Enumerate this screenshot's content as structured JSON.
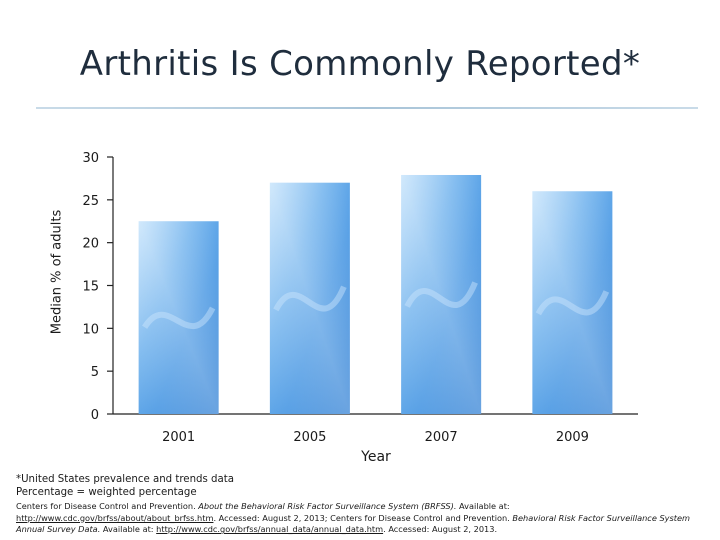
{
  "slide": {
    "title": "Arthritis Is Commonly Reported*"
  },
  "chart_data": {
    "type": "bar",
    "title": "Arthritis Is Commonly Reported*",
    "xlabel": "Year",
    "ylabel": "Median % of adults",
    "categories": [
      "2001",
      "2005",
      "2007",
      "2009"
    ],
    "values": [
      22.5,
      27,
      27.9,
      26
    ],
    "ylim": [
      0,
      30
    ],
    "yticks": [
      "0",
      "5",
      "10",
      "15",
      "20",
      "25",
      "30"
    ],
    "grid": false,
    "bar_color": "#3f8fdc",
    "bar_light_color": "#bfe0fb"
  },
  "footnote": {
    "line1": "*United States prevalence and trends data",
    "line2": "Percentage = weighted percentage"
  },
  "references": {
    "r1_prefix": "Centers for Disease Control and Prevention. ",
    "r1_title": "About the Behavioral Risk Factor Surveillance System (BRFSS).",
    "r1_available": " Available at: ",
    "r1_link": "http://www.cdc.gov/brfss/about/about_brfss.htm",
    "r1_accessed": ". Accessed: August 2, 2013; Centers for Disease Control and Prevention. ",
    "r2_title": "Behavioral Risk Factor Surveillance System Annual Survey Data.",
    "r2_available": " Available at: ",
    "r2_link": "http://www.cdc.gov/brfss/annual_data/annual_data.htm",
    "r2_accessed": ". Accessed: August 2, 2013."
  }
}
